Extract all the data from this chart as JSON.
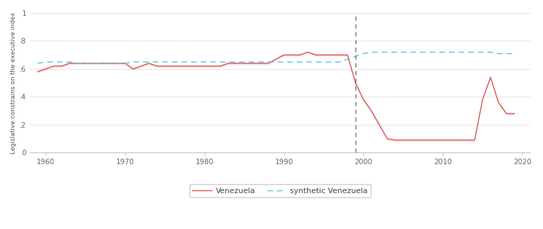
{
  "venezuela_years": [
    1959,
    1960,
    1961,
    1962,
    1963,
    1964,
    1965,
    1966,
    1967,
    1968,
    1969,
    1970,
    1971,
    1972,
    1973,
    1974,
    1975,
    1976,
    1977,
    1978,
    1979,
    1980,
    1981,
    1982,
    1983,
    1984,
    1985,
    1986,
    1987,
    1988,
    1989,
    1990,
    1991,
    1992,
    1993,
    1994,
    1995,
    1996,
    1997,
    1998,
    1999,
    2000,
    2001,
    2002,
    2003,
    2004,
    2005,
    2006,
    2007,
    2008,
    2009,
    2010,
    2011,
    2012,
    2013,
    2014,
    2015,
    2016,
    2017,
    2018,
    2019
  ],
  "venezuela_values": [
    0.58,
    0.6,
    0.62,
    0.62,
    0.64,
    0.64,
    0.64,
    0.64,
    0.64,
    0.64,
    0.64,
    0.64,
    0.6,
    0.62,
    0.64,
    0.62,
    0.62,
    0.62,
    0.62,
    0.62,
    0.62,
    0.62,
    0.62,
    0.62,
    0.64,
    0.64,
    0.64,
    0.64,
    0.64,
    0.64,
    0.67,
    0.7,
    0.7,
    0.7,
    0.72,
    0.7,
    0.7,
    0.7,
    0.7,
    0.7,
    0.5,
    0.38,
    0.3,
    0.2,
    0.1,
    0.09,
    0.09,
    0.09,
    0.09,
    0.09,
    0.09,
    0.09,
    0.09,
    0.09,
    0.09,
    0.09,
    0.38,
    0.54,
    0.36,
    0.28,
    0.28
  ],
  "synthetic_years": [
    1959,
    1960,
    1961,
    1962,
    1963,
    1964,
    1965,
    1966,
    1967,
    1968,
    1969,
    1970,
    1971,
    1972,
    1973,
    1974,
    1975,
    1976,
    1977,
    1978,
    1979,
    1980,
    1981,
    1982,
    1983,
    1984,
    1985,
    1986,
    1987,
    1988,
    1989,
    1990,
    1991,
    1992,
    1993,
    1994,
    1995,
    1996,
    1997,
    1998,
    1999,
    2000,
    2001,
    2002,
    2003,
    2004,
    2005,
    2006,
    2007,
    2008,
    2009,
    2010,
    2011,
    2012,
    2013,
    2014,
    2015,
    2016,
    2017,
    2018,
    2019
  ],
  "synthetic_values": [
    0.64,
    0.65,
    0.65,
    0.65,
    0.65,
    0.64,
    0.64,
    0.64,
    0.64,
    0.64,
    0.64,
    0.64,
    0.65,
    0.65,
    0.65,
    0.65,
    0.65,
    0.65,
    0.65,
    0.65,
    0.65,
    0.65,
    0.65,
    0.65,
    0.65,
    0.65,
    0.65,
    0.65,
    0.65,
    0.65,
    0.65,
    0.65,
    0.65,
    0.65,
    0.65,
    0.65,
    0.65,
    0.65,
    0.65,
    0.67,
    0.69,
    0.71,
    0.72,
    0.72,
    0.72,
    0.72,
    0.72,
    0.72,
    0.72,
    0.72,
    0.72,
    0.72,
    0.72,
    0.72,
    0.72,
    0.72,
    0.72,
    0.72,
    0.71,
    0.71,
    0.71
  ],
  "treatment_year": 1999,
  "ylabel": "Legislative constrains on the executive index",
  "ylim": [
    0,
    1
  ],
  "yticks": [
    0,
    0.2,
    0.4,
    0.6,
    0.8,
    1.0
  ],
  "ytick_labels": [
    "0",
    ".2",
    ".4",
    ".6",
    ".8",
    "1"
  ],
  "xlim": [
    1958,
    2021
  ],
  "xticks": [
    1960,
    1970,
    1980,
    1990,
    2000,
    2010,
    2020
  ],
  "xtick_labels": [
    "1960",
    "1970",
    "1980",
    "1990",
    "2000",
    "2010",
    "2020"
  ],
  "venezuela_color": "#d9534f",
  "synthetic_color": "#5bc0de",
  "venezuela_label": "Venezuela",
  "synthetic_label": "synthetic Venezuela",
  "vline_color": "#666666",
  "background_color": "#ffffff",
  "grid_color": "#e0e0e0"
}
